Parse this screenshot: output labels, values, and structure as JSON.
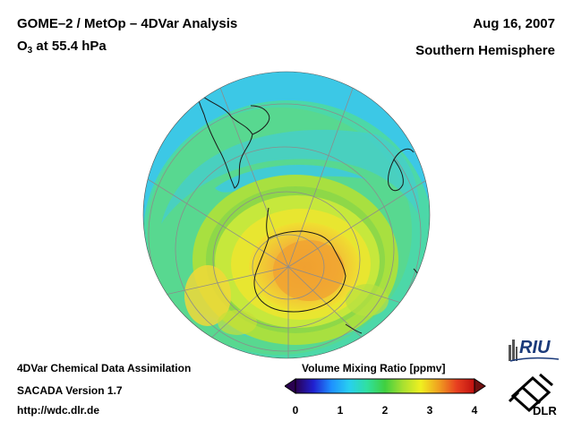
{
  "header": {
    "title": "GOME–2 / MetOp – 4DVar Analysis",
    "species": "O",
    "species_sub": "3",
    "level": " at 55.4 hPa",
    "date": "Aug 16, 2007",
    "region": "Southern Hemisphere"
  },
  "footer": {
    "line1": "4DVar Chemical Data Assimilation",
    "line2": "SACADA Version 1.7",
    "line3": "http://wdc.dlr.de"
  },
  "colorbar": {
    "title": "Volume Mixing Ratio [ppmv]",
    "ticks": [
      "0",
      "1",
      "2",
      "3",
      "4"
    ],
    "min": 0,
    "max": 4,
    "colors": [
      "#2a0050",
      "#2020d0",
      "#1e90ff",
      "#28d0f0",
      "#30e0a0",
      "#40d040",
      "#a8e030",
      "#f0f020",
      "#f0a020",
      "#e84020",
      "#c01010"
    ]
  },
  "map": {
    "projection": "orthographic, south pole centred",
    "field_palette": {
      "background_high_latitude_band": "#3cc8e6",
      "mid_latitude": "#58d890",
      "ring": "#a8e040",
      "polar_vortex_edge": "#f0e030",
      "polar_core": "#f0a030",
      "coast": "#1a1a1a"
    }
  },
  "logos": {
    "riu": "RIU",
    "dlr": "DLR"
  }
}
